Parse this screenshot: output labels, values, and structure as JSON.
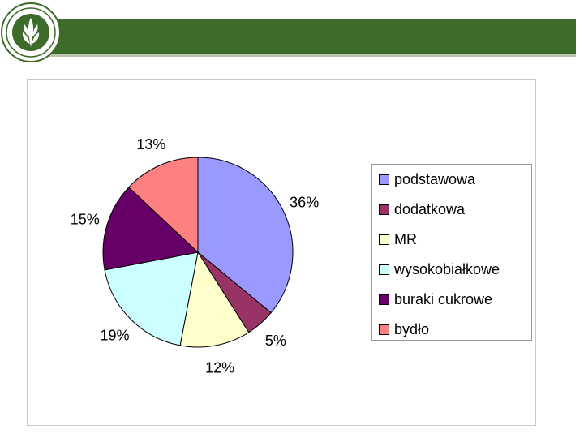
{
  "chart_data": {
    "type": "pie",
    "categories": [
      "podstawowa",
      "dodatkowa",
      "MR",
      "wysokobiałkowe",
      "buraki cukrowe",
      "bydło"
    ],
    "values": [
      36,
      5,
      12,
      19,
      15,
      13
    ],
    "labels": [
      "36%",
      "5%",
      "12%",
      "19%",
      "15%",
      "13%"
    ],
    "colors": [
      "#9999ff",
      "#993366",
      "#ffffcc",
      "#ccffff",
      "#660066",
      "#ff8080"
    ],
    "legend_position": "right",
    "start_angle": "12 o'clock, clockwise"
  },
  "logo": {
    "icon": "university-seal-icon"
  }
}
